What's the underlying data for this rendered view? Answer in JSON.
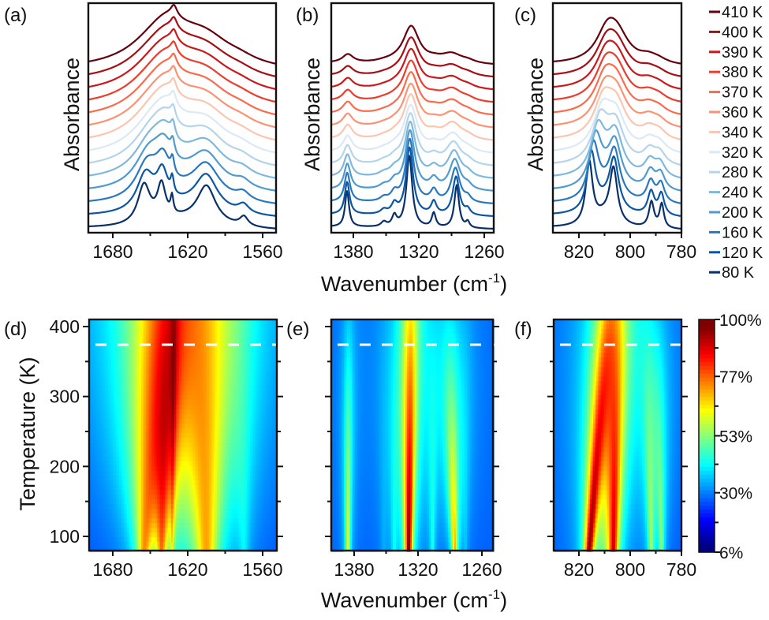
{
  "chart_data": [
    {
      "id": "a",
      "panel_label": "(a)",
      "type": "line",
      "ylabel": "Absorbance",
      "xlabel": "",
      "x_reversed": true,
      "xlim": [
        1700,
        1552
      ],
      "xticks": [
        1680,
        1620,
        1560
      ],
      "x_minor_ticks": [
        1650,
        1590
      ],
      "offset_step": 1.0,
      "baseline_tilt": 0.05,
      "peaks": [
        {
          "center_80K": 1655,
          "center_410K": 1645,
          "width_80K": 6,
          "width_410K": 26,
          "height_80K": 4.6,
          "height_410K": 2.6
        },
        {
          "center_80K": 1641,
          "center_410K": 1636,
          "width_80K": 4,
          "width_410K": 16,
          "height_80K": 4.1,
          "height_410K": 2.0
        },
        {
          "center_80K": 1632.6,
          "center_410K": 1631,
          "width_80K": 1.3,
          "width_410K": 3,
          "height_80K": 2.0,
          "height_410K": 1.2
        },
        {
          "center_80K": 1605,
          "center_410K": 1606,
          "width_80K": 9,
          "width_410K": 26,
          "height_80K": 4.4,
          "height_410K": 2.6
        },
        {
          "center_80K": 1575,
          "center_410K": 1578,
          "width_80K": 4,
          "width_410K": 14,
          "height_80K": 1.1,
          "height_410K": 0.4
        },
        {
          "center_80K": 1622,
          "center_410K": 1622,
          "width_80K": 30,
          "width_410K": 40,
          "height_80K": 1.0,
          "height_410K": 1.6
        }
      ]
    },
    {
      "id": "b",
      "panel_label": "(b)",
      "type": "line",
      "ylabel": "Absorbance",
      "xlabel": "",
      "x_reversed": true,
      "xlim": [
        1400,
        1250
      ],
      "xticks": [
        1380,
        1320,
        1260
      ],
      "x_minor_ticks": [
        1350,
        1290
      ],
      "offset_step": 1.0,
      "baseline_tilt": 0.05,
      "peaks": [
        {
          "center_80K": 1385.8,
          "center_410K": 1385,
          "width_80K": 2.2,
          "width_410K": 6,
          "height_80K": 3.0,
          "height_410K": 0.7
        },
        {
          "center_80K": 1342.4,
          "center_410K": 1342,
          "width_80K": 2.5,
          "width_410K": 8,
          "height_80K": 0.9,
          "height_410K": 0.1
        },
        {
          "center_80K": 1352,
          "center_410K": 1352,
          "width_80K": 3,
          "width_410K": 8,
          "height_80K": 0.4,
          "height_410K": 0.1
        },
        {
          "center_80K": 1328.7,
          "center_410K": 1327,
          "width_80K": 3.2,
          "width_410K": 9,
          "height_80K": 6.0,
          "height_410K": 3.1
        },
        {
          "center_80K": 1306.3,
          "center_410K": 1306,
          "width_80K": 2.2,
          "width_410K": 8,
          "height_80K": 1.2,
          "height_410K": 0.2
        },
        {
          "center_80K": 1285.3,
          "center_410K": 1290,
          "width_80K": 2.6,
          "width_410K": 12,
          "height_80K": 3.6,
          "height_410K": 0.8
        },
        {
          "center_80K": 1275.2,
          "center_410K": 1275,
          "width_80K": 2.0,
          "width_410K": 8,
          "height_80K": 0.5,
          "height_410K": 0.2
        }
      ]
    },
    {
      "id": "c",
      "panel_label": "(c)",
      "type": "line",
      "ylabel": "Absorbance",
      "xlabel": "",
      "x_reversed": true,
      "xlim": [
        830,
        780
      ],
      "xticks": [
        820,
        800,
        780
      ],
      "x_minor_ticks": [
        810,
        790
      ],
      "offset_step": 1.0,
      "baseline_tilt": 0.05,
      "peaks": [
        {
          "center_80K": 816,
          "center_410K": 809,
          "width_80K": 1.6,
          "width_410K": 5,
          "height_80K": 3.4,
          "height_410K": 1.4
        },
        {
          "center_80K": 806.5,
          "center_410K": 805,
          "width_80K": 1.8,
          "width_410K": 5,
          "height_80K": 2.9,
          "height_410K": 0.9
        },
        {
          "center_80K": 791.7,
          "center_410K": 793,
          "width_80K": 1.2,
          "width_410K": 4,
          "height_80K": 1.4,
          "height_410K": 0.3
        },
        {
          "center_80K": 787.7,
          "center_410K": 789,
          "width_80K": 1.0,
          "width_410K": 4,
          "height_80K": 1.3,
          "height_410K": 0.2
        },
        {
          "center_80K": 810,
          "center_410K": 806,
          "width_80K": 5,
          "width_410K": 8,
          "height_80K": 0.6,
          "height_410K": 0.6
        }
      ]
    },
    {
      "id": "d",
      "panel_label": "(d)",
      "type": "heatmap",
      "source_panel": "a",
      "ylabel": "Temperature (K)",
      "ylim": [
        80,
        410
      ],
      "yticks": [
        100,
        200,
        300,
        400
      ],
      "y_minor_ticks": [
        150,
        250,
        350
      ],
      "xticks": [
        1680,
        1620,
        1560
      ],
      "x_minor_ticks": [
        1650,
        1590
      ],
      "dashed_line_T": 374
    },
    {
      "id": "e",
      "panel_label": "(e)",
      "type": "heatmap",
      "source_panel": "b",
      "ylim": [
        80,
        410
      ],
      "yticks": [
        100,
        200,
        300,
        400
      ],
      "y_minor_ticks": [
        150,
        250,
        350
      ],
      "xticks": [
        1380,
        1320,
        1260
      ],
      "x_minor_ticks": [
        1350,
        1290
      ],
      "dashed_line_T": 374
    },
    {
      "id": "f",
      "panel_label": "(f)",
      "type": "heatmap",
      "source_panel": "c",
      "ylim": [
        80,
        410
      ],
      "yticks": [
        100,
        200,
        300,
        400
      ],
      "y_minor_ticks": [
        150,
        250,
        350
      ],
      "xticks": [
        820,
        800,
        780
      ],
      "x_minor_ticks": [
        810,
        790
      ],
      "dashed_line_T": 374
    }
  ],
  "shared": {
    "top_xlabel": "Wavenumber (cm",
    "top_xlabel_sup": "-1",
    "top_xlabel_end": ")",
    "bottom_xlabel": "Wavenumber (cm",
    "bottom_xlabel_sup": "-1",
    "bottom_xlabel_end": ")"
  },
  "legend": {
    "entries": [
      {
        "label": "410 K",
        "T": 410,
        "color": "#67000d"
      },
      {
        "label": "400 K",
        "T": 400,
        "color": "#a50f15"
      },
      {
        "label": "390 K",
        "T": 390,
        "color": "#cb181d"
      },
      {
        "label": "380 K",
        "T": 380,
        "color": "#ef3b2c"
      },
      {
        "label": "370 K",
        "T": 370,
        "color": "#fb6a4a"
      },
      {
        "label": "360 K",
        "T": 360,
        "color": "#fc9272"
      },
      {
        "label": "340 K",
        "T": 340,
        "color": "#fcc5b0"
      },
      {
        "label": "320 K",
        "T": 320,
        "color": "#dbe9f6"
      },
      {
        "label": "280 K",
        "T": 280,
        "color": "#b4d4eb"
      },
      {
        "label": "240 K",
        "T": 240,
        "color": "#7fb8de"
      },
      {
        "label": "200 K",
        "T": 200,
        "color": "#4f9bd0"
      },
      {
        "label": "160 K",
        "T": 160,
        "color": "#2a78be"
      },
      {
        "label": "120 K",
        "T": 120,
        "color": "#0b57a4"
      },
      {
        "label": "80 K",
        "T": 80,
        "color": "#08306b"
      }
    ]
  },
  "colorbar": {
    "colormap": "jet",
    "range_percent": [
      6,
      100
    ],
    "tick_labels": [
      "100%",
      "77%",
      "53%",
      "30%",
      "6%"
    ],
    "tick_values": [
      100,
      77,
      53,
      30,
      6
    ]
  }
}
